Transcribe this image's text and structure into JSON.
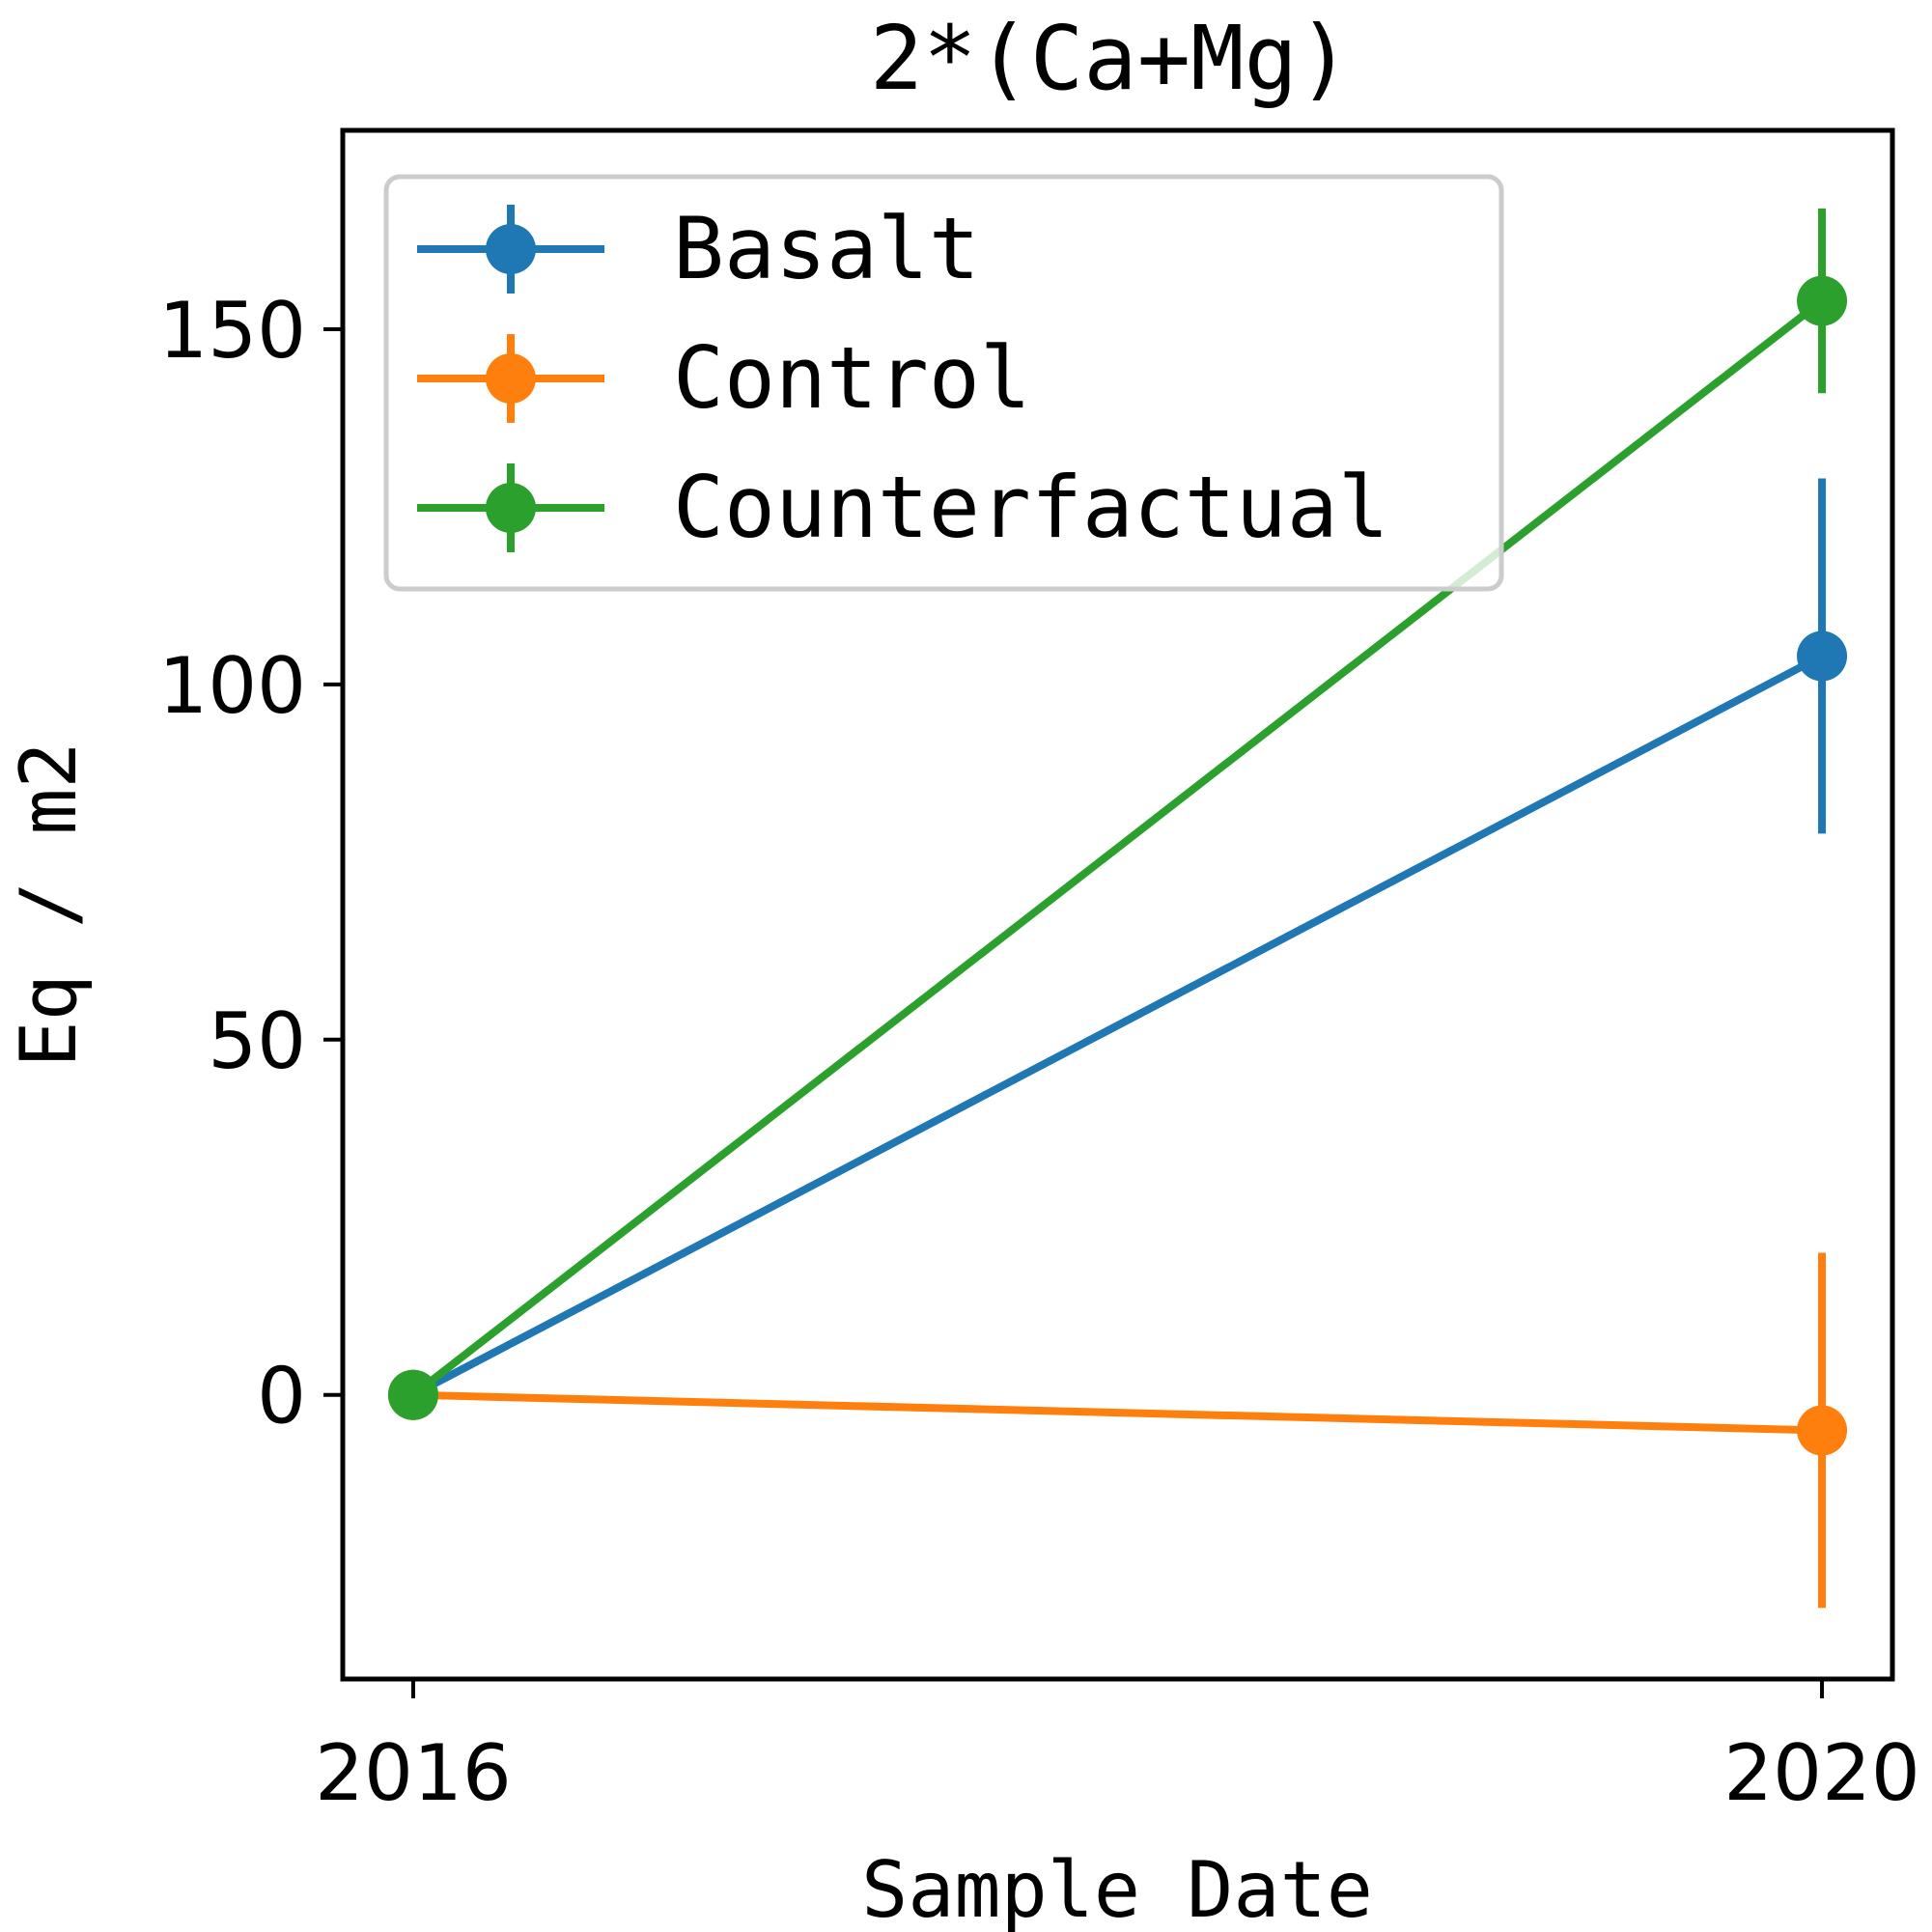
{
  "chart_data": {
    "type": "line",
    "title": "2*(Ca+Mg)",
    "xlabel": "Sample Date",
    "ylabel": "Eq / m2",
    "x": [
      2016,
      2020
    ],
    "x_tick_labels": [
      "2016",
      "2020"
    ],
    "xlim": [
      2015.8,
      2020.2
    ],
    "ylim": [
      -40,
      178
    ],
    "y_ticks": [
      0,
      50,
      100,
      150
    ],
    "y_tick_labels": [
      "0",
      "50",
      "100",
      "150"
    ],
    "grid": false,
    "legend_position": "upper-left",
    "series": [
      {
        "name": "Basalt",
        "color": "#1f77b4",
        "values": [
          0,
          104
        ],
        "error": [
          0,
          25
        ]
      },
      {
        "name": "Control",
        "color": "#ff7f0e",
        "values": [
          0,
          -5
        ],
        "error": [
          0,
          25
        ]
      },
      {
        "name": "Counterfactual",
        "color": "#2ca02c",
        "values": [
          0,
          154
        ],
        "error": [
          0,
          13
        ]
      }
    ]
  }
}
